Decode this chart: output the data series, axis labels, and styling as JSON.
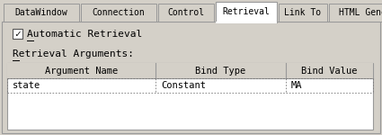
{
  "bg_color": "#d4d0c8",
  "white": "#ffffff",
  "black": "#000000",
  "border_color": "#999999",
  "tab_labels": [
    "DataWindow",
    "Connection",
    "Control",
    "Retrieval",
    "Link To",
    "HTML Generator"
  ],
  "active_tab_idx": 3,
  "checkbox_label": "Automatic Retrieval",
  "section_label": "Retrieval Arguments:",
  "table_headers": [
    "Argument Name",
    "Bind Type",
    "Bind Value"
  ],
  "table_row": [
    "state",
    "Constant",
    "MA"
  ],
  "fig_w": 4.25,
  "fig_h": 1.5,
  "dpi": 100
}
